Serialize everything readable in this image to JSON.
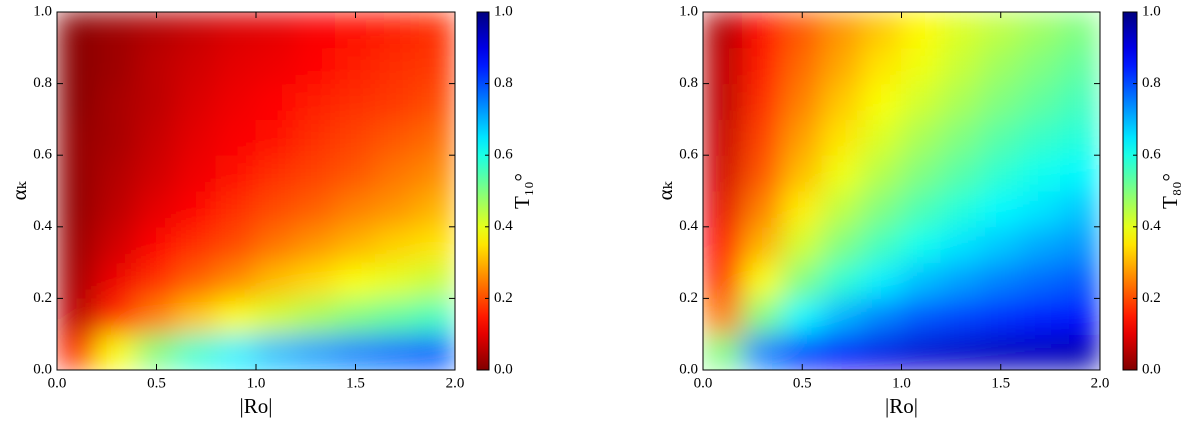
{
  "chart_data": [
    {
      "type": "heatmap",
      "xlabel": "|Ro|",
      "ylabel": "αₖ",
      "colorbar_label": "T₁₀°",
      "colormap": "jet_r",
      "xlim": [
        0,
        2
      ],
      "ylim": [
        0,
        1
      ],
      "clim": [
        0,
        1
      ],
      "xticks": [
        {
          "value": 0,
          "label": "0.0"
        },
        {
          "value": 0.5,
          "label": "0.5"
        },
        {
          "value": 1,
          "label": "1.0"
        },
        {
          "value": 1.5,
          "label": "1.5"
        },
        {
          "value": 2,
          "label": "2.0"
        }
      ],
      "yticks": [
        {
          "value": 0,
          "label": "0.0"
        },
        {
          "value": 0.2,
          "label": "0.2"
        },
        {
          "value": 0.4,
          "label": "0.4"
        },
        {
          "value": 0.6,
          "label": "0.6"
        },
        {
          "value": 0.8,
          "label": "0.8"
        },
        {
          "value": 1,
          "label": "1.0"
        }
      ],
      "cticks": [
        {
          "value": 0,
          "label": "0.0"
        },
        {
          "value": 0.2,
          "label": "0.2"
        },
        {
          "value": 0.4,
          "label": "0.4"
        },
        {
          "value": 0.6,
          "label": "0.6"
        },
        {
          "value": 0.8,
          "label": "0.8"
        },
        {
          "value": 1,
          "label": "1.0"
        }
      ],
      "x": [
        0.1,
        0.3,
        0.5,
        0.7,
        0.9,
        1.1,
        1.3,
        1.5,
        1.7,
        1.9
      ],
      "y": [
        0.05,
        0.15,
        0.25,
        0.35,
        0.45,
        0.55,
        0.65,
        0.75,
        0.85,
        0.95
      ],
      "z": [
        [
          0.17,
          0.38,
          0.5,
          0.58,
          0.64,
          0.69,
          0.72,
          0.75,
          0.77,
          0.79
        ],
        [
          0.06,
          0.17,
          0.25,
          0.32,
          0.38,
          0.42,
          0.46,
          0.5,
          0.53,
          0.56
        ],
        [
          0.04,
          0.11,
          0.17,
          0.22,
          0.26,
          0.31,
          0.34,
          0.38,
          0.4,
          0.43
        ],
        [
          0.03,
          0.08,
          0.13,
          0.17,
          0.2,
          0.24,
          0.27,
          0.3,
          0.33,
          0.35
        ],
        [
          0.02,
          0.06,
          0.1,
          0.13,
          0.17,
          0.2,
          0.22,
          0.25,
          0.27,
          0.3
        ],
        [
          0.02,
          0.05,
          0.08,
          0.11,
          0.14,
          0.17,
          0.19,
          0.21,
          0.24,
          0.26
        ],
        [
          0.02,
          0.04,
          0.07,
          0.1,
          0.12,
          0.14,
          0.17,
          0.19,
          0.21,
          0.23
        ],
        [
          0.01,
          0.04,
          0.06,
          0.09,
          0.11,
          0.13,
          0.15,
          0.17,
          0.18,
          0.2
        ],
        [
          0.01,
          0.03,
          0.06,
          0.08,
          0.1,
          0.11,
          0.13,
          0.15,
          0.17,
          0.18
        ],
        [
          0.01,
          0.03,
          0.05,
          0.07,
          0.09,
          0.1,
          0.12,
          0.14,
          0.15,
          0.17
        ]
      ]
    },
    {
      "type": "heatmap",
      "xlabel": "|Ro|",
      "ylabel": "αₖ",
      "colorbar_label": "T₈₀°",
      "colormap": "jet_r",
      "xlim": [
        0,
        2
      ],
      "ylim": [
        0,
        1
      ],
      "clim": [
        0,
        1
      ],
      "xticks": [
        {
          "value": 0,
          "label": "0.0"
        },
        {
          "value": 0.5,
          "label": "0.5"
        },
        {
          "value": 1,
          "label": "1.0"
        },
        {
          "value": 1.5,
          "label": "1.5"
        },
        {
          "value": 2,
          "label": "2.0"
        }
      ],
      "yticks": [
        {
          "value": 0,
          "label": "0.0"
        },
        {
          "value": 0.2,
          "label": "0.2"
        },
        {
          "value": 0.4,
          "label": "0.4"
        },
        {
          "value": 0.6,
          "label": "0.6"
        },
        {
          "value": 0.8,
          "label": "0.8"
        },
        {
          "value": 1,
          "label": "1.0"
        }
      ],
      "cticks": [
        {
          "value": 0,
          "label": "0.0"
        },
        {
          "value": 0.2,
          "label": "0.2"
        },
        {
          "value": 0.4,
          "label": "0.4"
        },
        {
          "value": 0.6,
          "label": "0.6"
        },
        {
          "value": 0.8,
          "label": "0.8"
        },
        {
          "value": 1,
          "label": "1.0"
        }
      ],
      "x": [
        0.1,
        0.3,
        0.5,
        0.7,
        0.9,
        1.1,
        1.3,
        1.5,
        1.7,
        1.9
      ],
      "y": [
        0.05,
        0.15,
        0.25,
        0.35,
        0.45,
        0.55,
        0.65,
        0.75,
        0.85,
        0.95
      ],
      "z": [
        [
          0.5,
          0.75,
          0.83,
          0.88,
          0.9,
          0.92,
          0.93,
          0.94,
          0.94,
          0.95
        ],
        [
          0.25,
          0.5,
          0.63,
          0.7,
          0.75,
          0.79,
          0.81,
          0.83,
          0.85,
          0.86
        ],
        [
          0.17,
          0.38,
          0.5,
          0.58,
          0.64,
          0.69,
          0.72,
          0.75,
          0.77,
          0.79
        ],
        [
          0.13,
          0.3,
          0.42,
          0.5,
          0.56,
          0.61,
          0.65,
          0.68,
          0.71,
          0.73
        ],
        [
          0.1,
          0.25,
          0.36,
          0.44,
          0.5,
          0.55,
          0.59,
          0.63,
          0.65,
          0.68
        ],
        [
          0.08,
          0.21,
          0.31,
          0.39,
          0.45,
          0.5,
          0.54,
          0.58,
          0.61,
          0.63
        ],
        [
          0.07,
          0.19,
          0.28,
          0.35,
          0.41,
          0.46,
          0.5,
          0.54,
          0.57,
          0.59
        ],
        [
          0.06,
          0.17,
          0.25,
          0.32,
          0.38,
          0.42,
          0.46,
          0.5,
          0.53,
          0.56
        ],
        [
          0.06,
          0.15,
          0.23,
          0.29,
          0.35,
          0.39,
          0.43,
          0.47,
          0.5,
          0.53
        ],
        [
          0.05,
          0.14,
          0.21,
          0.27,
          0.32,
          0.37,
          0.41,
          0.44,
          0.47,
          0.5
        ]
      ]
    }
  ]
}
